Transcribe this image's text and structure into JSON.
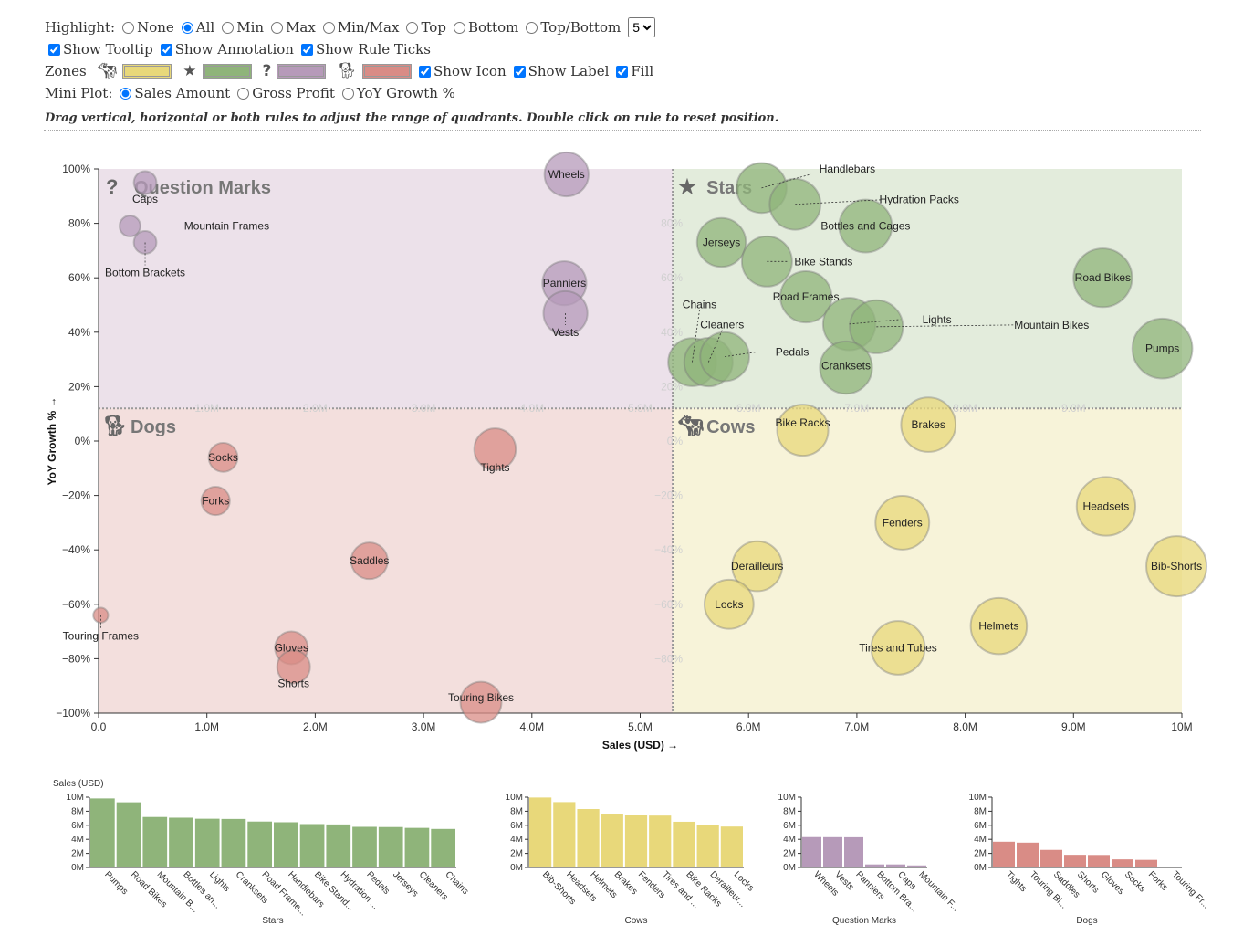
{
  "controls": {
    "highlight_label": "Highlight:",
    "highlight_options": [
      "None",
      "All",
      "Min",
      "Max",
      "Min/Max",
      "Top",
      "Bottom",
      "Top/Bottom"
    ],
    "highlight_selected": "All",
    "topn_value": "5",
    "show_tooltip": "Show Tooltip",
    "show_annotation": "Show Annotation",
    "show_rule_ticks": "Show Rule Ticks",
    "zones_label": "Zones",
    "show_icon": "Show Icon",
    "show_label": "Show Label",
    "fill": "Fill",
    "mini_plot_label": "Mini Plot:",
    "mini_plot_options": [
      "Sales Amount",
      "Gross Profit",
      "YoY Growth %"
    ],
    "mini_plot_selected": "Sales Amount",
    "hint": "Drag vertical, horizontal or both rules to adjust the range of quadrants. Double click on rule to reset position."
  },
  "colors": {
    "cows": "#e8d87a",
    "stars": "#8fb47a",
    "question": "#b69ab9",
    "dogs": "#d98c86",
    "cows_bg": "#f7f3d9",
    "stars_bg": "#e3ecdc",
    "question_bg": "#ece1ea",
    "dogs_bg": "#f3dfdd"
  },
  "chart_data": {
    "type": "scatter",
    "xlabel": "Sales (USD) →",
    "ylabel": "YoY Growth % →",
    "xlim": [
      0,
      10000000
    ],
    "ylim": [
      -100,
      100
    ],
    "x_ticks": [
      "0.0",
      "1.0M",
      "2.0M",
      "3.0M",
      "4.0M",
      "5.0M",
      "6.0M",
      "7.0M",
      "8.0M",
      "9.0M",
      "10M"
    ],
    "y_ticks": [
      "−100%",
      "−80%",
      "−60%",
      "−40%",
      "−20%",
      "0%",
      "20%",
      "40%",
      "60%",
      "80%",
      "100%"
    ],
    "rule_x_ticks": [
      "1.0M",
      "2.0M",
      "3.0M",
      "4.0M",
      "5.0M",
      "6.0M",
      "7.0M",
      "8.0M",
      "9.0M"
    ],
    "rule_y_ticks": [
      "80%",
      "60%",
      "40%",
      "20%",
      "0%",
      "−20%",
      "−40%",
      "−60%",
      "−80%"
    ],
    "rule_x": 5300000,
    "rule_y": 12,
    "quadrants": {
      "stars": "Stars",
      "cows": "Cows",
      "question": "Question Marks",
      "dogs": "Dogs"
    },
    "points": [
      {
        "name": "Wheels",
        "x": 4320000,
        "y": 98,
        "z": 4320000,
        "q": "question"
      },
      {
        "name": "Panniers",
        "x": 4300000,
        "y": 58,
        "z": 4300000,
        "q": "question"
      },
      {
        "name": "Vests",
        "x": 4310000,
        "y": 47,
        "z": 4310000,
        "q": "question"
      },
      {
        "name": "Caps",
        "x": 430000,
        "y": 95,
        "z": 430000,
        "q": "question"
      },
      {
        "name": "Mountain Frames",
        "x": 290000,
        "y": 79,
        "z": 290000,
        "q": "question"
      },
      {
        "name": "Bottom Brackets",
        "x": 430000,
        "y": 73,
        "z": 430000,
        "q": "question"
      },
      {
        "name": "Handlebars",
        "x": 6120000,
        "y": 93,
        "z": 6120000,
        "q": "stars"
      },
      {
        "name": "Hydration Packs",
        "x": 6430000,
        "y": 87,
        "z": 6430000,
        "q": "stars"
      },
      {
        "name": "Bottles and Cages",
        "x": 7080000,
        "y": 79,
        "z": 7080000,
        "q": "stars"
      },
      {
        "name": "Jerseys",
        "x": 5750000,
        "y": 73,
        "z": 5750000,
        "q": "stars"
      },
      {
        "name": "Bike Stands",
        "x": 6170000,
        "y": 66,
        "z": 6170000,
        "q": "stars"
      },
      {
        "name": "Road Frames",
        "x": 6530000,
        "y": 53,
        "z": 6530000,
        "q": "stars"
      },
      {
        "name": "Road Bikes",
        "x": 9270000,
        "y": 60,
        "z": 9270000,
        "q": "stars"
      },
      {
        "name": "Lights",
        "x": 6930000,
        "y": 43,
        "z": 6930000,
        "q": "stars"
      },
      {
        "name": "Mountain Bikes",
        "x": 7180000,
        "y": 42,
        "z": 7180000,
        "q": "stars"
      },
      {
        "name": "Chains",
        "x": 5480000,
        "y": 29,
        "z": 5480000,
        "q": "stars"
      },
      {
        "name": "Cleaners",
        "x": 5630000,
        "y": 29,
        "z": 5630000,
        "q": "stars"
      },
      {
        "name": "Pedals",
        "x": 5780000,
        "y": 31,
        "z": 5780000,
        "q": "stars"
      },
      {
        "name": "Cranksets",
        "x": 6900000,
        "y": 27,
        "z": 6900000,
        "q": "stars"
      },
      {
        "name": "Pumps",
        "x": 9820000,
        "y": 34,
        "z": 9820000,
        "q": "stars"
      },
      {
        "name": "Bike Racks",
        "x": 6500000,
        "y": 4,
        "z": 6500000,
        "q": "cows"
      },
      {
        "name": "Brakes",
        "x": 7660000,
        "y": 6,
        "z": 7660000,
        "q": "cows"
      },
      {
        "name": "Headsets",
        "x": 9300000,
        "y": -24,
        "z": 9300000,
        "q": "cows"
      },
      {
        "name": "Fenders",
        "x": 7420000,
        "y": -30,
        "z": 7420000,
        "q": "cows"
      },
      {
        "name": "Bib-Shorts",
        "x": 9950000,
        "y": -46,
        "z": 9950000,
        "q": "cows"
      },
      {
        "name": "Derailleurs",
        "x": 6080000,
        "y": -46,
        "z": 6080000,
        "q": "cows"
      },
      {
        "name": "Locks",
        "x": 5820000,
        "y": -60,
        "z": 5820000,
        "q": "cows"
      },
      {
        "name": "Helmets",
        "x": 8310000,
        "y": -68,
        "z": 8310000,
        "q": "cows"
      },
      {
        "name": "Tires and Tubes",
        "x": 7380000,
        "y": -76,
        "z": 7380000,
        "q": "cows"
      },
      {
        "name": "Socks",
        "x": 1150000,
        "y": -6,
        "z": 1150000,
        "q": "dogs"
      },
      {
        "name": "Tights",
        "x": 3660000,
        "y": -3,
        "z": 3660000,
        "q": "dogs"
      },
      {
        "name": "Forks",
        "x": 1080000,
        "y": -22,
        "z": 1080000,
        "q": "dogs"
      },
      {
        "name": "Saddles",
        "x": 2500000,
        "y": -44,
        "z": 2500000,
        "q": "dogs"
      },
      {
        "name": "Touring Frames",
        "x": 20000,
        "y": -64,
        "z": 20000,
        "q": "dogs"
      },
      {
        "name": "Gloves",
        "x": 1780000,
        "y": -76,
        "z": 1780000,
        "q": "dogs"
      },
      {
        "name": "Shorts",
        "x": 1800000,
        "y": -83,
        "z": 1800000,
        "q": "dogs"
      },
      {
        "name": "Touring Bikes",
        "x": 3530000,
        "y": -96,
        "z": 3530000,
        "q": "dogs"
      }
    ],
    "mini_plots": [
      {
        "key": "stars",
        "title": "Stars",
        "ylabel": "Sales (USD)",
        "categories": [
          "Pumps",
          "Road Bikes",
          "Mountain B...",
          "Bottles an...",
          "Lights",
          "Cranksets",
          "Road Frame...",
          "Handlebars",
          "Bike Stand...",
          "Hydration ...",
          "Pedals",
          "Jerseys",
          "Cleaners",
          "Chains"
        ],
        "values": [
          9820000,
          9270000,
          7180000,
          7080000,
          6930000,
          6900000,
          6530000,
          6430000,
          6170000,
          6120000,
          5780000,
          5750000,
          5630000,
          5480000
        ]
      },
      {
        "key": "cows",
        "title": "Cows",
        "ylabel": "",
        "categories": [
          "Bib-Shorts",
          "Headsets",
          "Helmets",
          "Brakes",
          "Fenders",
          "Tires and ...",
          "Bike Racks",
          "Derailleur...",
          "Locks"
        ],
        "values": [
          9950000,
          9300000,
          8310000,
          7660000,
          7420000,
          7380000,
          6500000,
          6080000,
          5820000
        ]
      },
      {
        "key": "question",
        "title": "Question Marks",
        "ylabel": "",
        "categories": [
          "Wheels",
          "Vests",
          "Panniers",
          "Bottom Bra...",
          "Caps",
          "Mountain F..."
        ],
        "values": [
          4320000,
          4310000,
          4300000,
          430000,
          430000,
          290000
        ]
      },
      {
        "key": "dogs",
        "title": "Dogs",
        "ylabel": "",
        "categories": [
          "Tights",
          "Touring Bi...",
          "Saddles",
          "Shorts",
          "Gloves",
          "Socks",
          "Forks",
          "Touring Fr..."
        ],
        "values": [
          3660000,
          3530000,
          2500000,
          1800000,
          1780000,
          1150000,
          1080000,
          20000
        ]
      }
    ],
    "mini_y_ticks": [
      "0M",
      "2M",
      "4M",
      "6M",
      "8M",
      "10M"
    ]
  }
}
